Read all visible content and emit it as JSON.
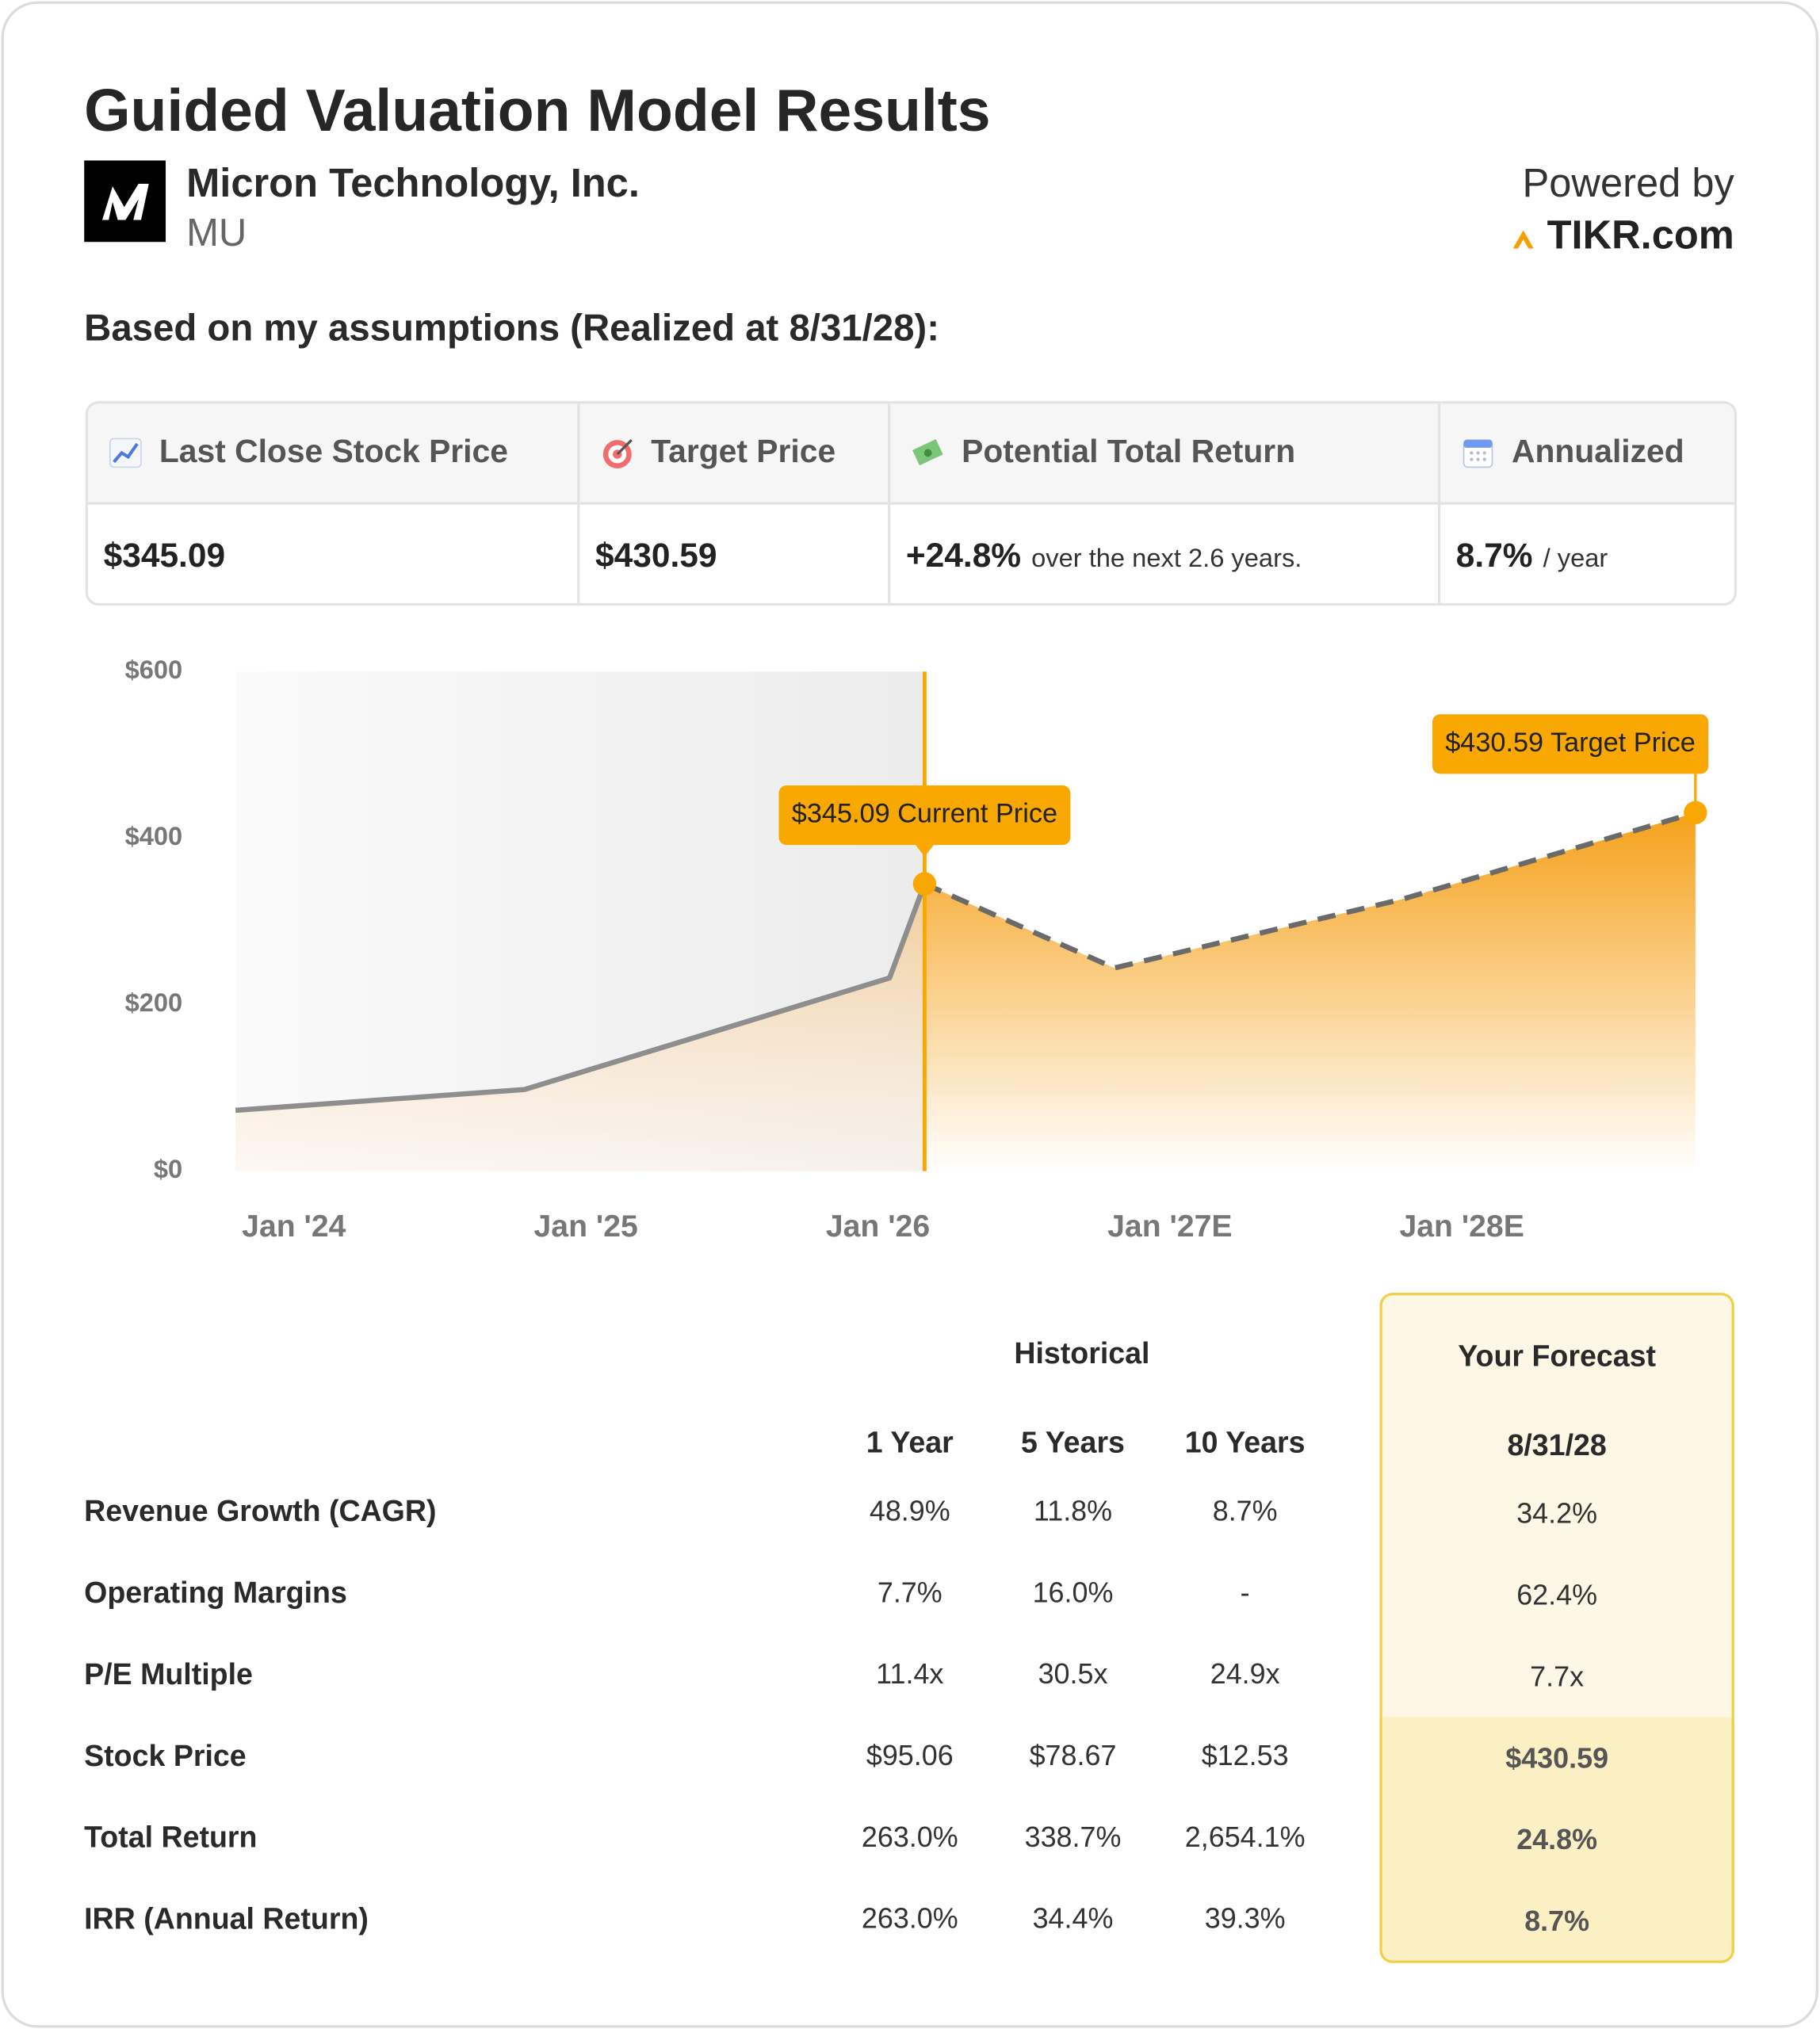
{
  "header": {
    "title": "Guided Valuation Model Results",
    "company": "Micron Technology, Inc.",
    "ticker": "MU",
    "powered_by": "Powered by",
    "brand": "TIKR.com"
  },
  "assumptions_heading": "Based on my assumptions (Realized at 8/31/28):",
  "summary": {
    "columns": [
      {
        "label": "Last Close Stock Price",
        "value": "$345.09"
      },
      {
        "label": "Target Price",
        "value": "$430.59"
      },
      {
        "label": "Potential Total Return",
        "value": "+24.8%",
        "note": "over the next 2.6 years."
      },
      {
        "label": "Annualized",
        "value": "8.7%",
        "note": "/ year"
      }
    ]
  },
  "chart_data": {
    "type": "area",
    "x": [
      2023.8,
      2024.79,
      2026.04,
      2026.16,
      2026.81,
      2027.8,
      2028.8
    ],
    "xlim": [
      2023.8,
      2028.8
    ],
    "xticks": [
      {
        "value": 2024,
        "label": "Jan '24"
      },
      {
        "value": 2025,
        "label": "Jan '25"
      },
      {
        "value": 2026,
        "label": "Jan '26"
      },
      {
        "value": 2027,
        "label": "Jan '27E"
      },
      {
        "value": 2028,
        "label": "Jan '28E"
      }
    ],
    "ylim": [
      0,
      600
    ],
    "yticks": [
      {
        "value": 0,
        "label": "$0"
      },
      {
        "value": 200,
        "label": "$200"
      },
      {
        "value": 400,
        "label": "$400"
      },
      {
        "value": 600,
        "label": "$600"
      }
    ],
    "series": [
      {
        "color": "#8e8e8e",
        "fill": "#f2c78c",
        "dash": false,
        "values": [
          73,
          98,
          232,
          345.09,
          null,
          null,
          null
        ]
      },
      {
        "color": "#6a6a6a",
        "fill": "#f5a11a",
        "dash": true,
        "values": [
          null,
          null,
          null,
          345.09,
          244,
          327,
          430.59
        ]
      }
    ],
    "annotations": [
      "$345.09 Current Price",
      "$430.59 Target Price"
    ],
    "annotation_color": "#f8a800"
  },
  "table": {
    "historical_heading": "Historical",
    "forecast_heading": "Your Forecast",
    "columns": [
      "1 Year",
      "5 Years",
      "10 Years",
      "8/31/28"
    ],
    "rows": [
      {
        "label": "Revenue Growth (CAGR)",
        "values": [
          "48.9%",
          "11.8%",
          "8.7%",
          "34.2%"
        ]
      },
      {
        "label": "Operating Margins",
        "values": [
          "7.7%",
          "16.0%",
          "-",
          "62.4%"
        ]
      },
      {
        "label": "P/E Multiple",
        "values": [
          "11.4x",
          "30.5x",
          "24.9x",
          "7.7x"
        ]
      },
      {
        "label": "Stock Price",
        "values": [
          "$95.06",
          "$78.67",
          "$12.53",
          "$430.59"
        ]
      },
      {
        "label": "Total Return",
        "values": [
          "263.0%",
          "338.7%",
          "2,654.1%",
          "24.8%"
        ]
      },
      {
        "label": "IRR (Annual Return)",
        "values": [
          "263.0%",
          "34.4%",
          "39.3%",
          "8.7%"
        ]
      }
    ]
  }
}
